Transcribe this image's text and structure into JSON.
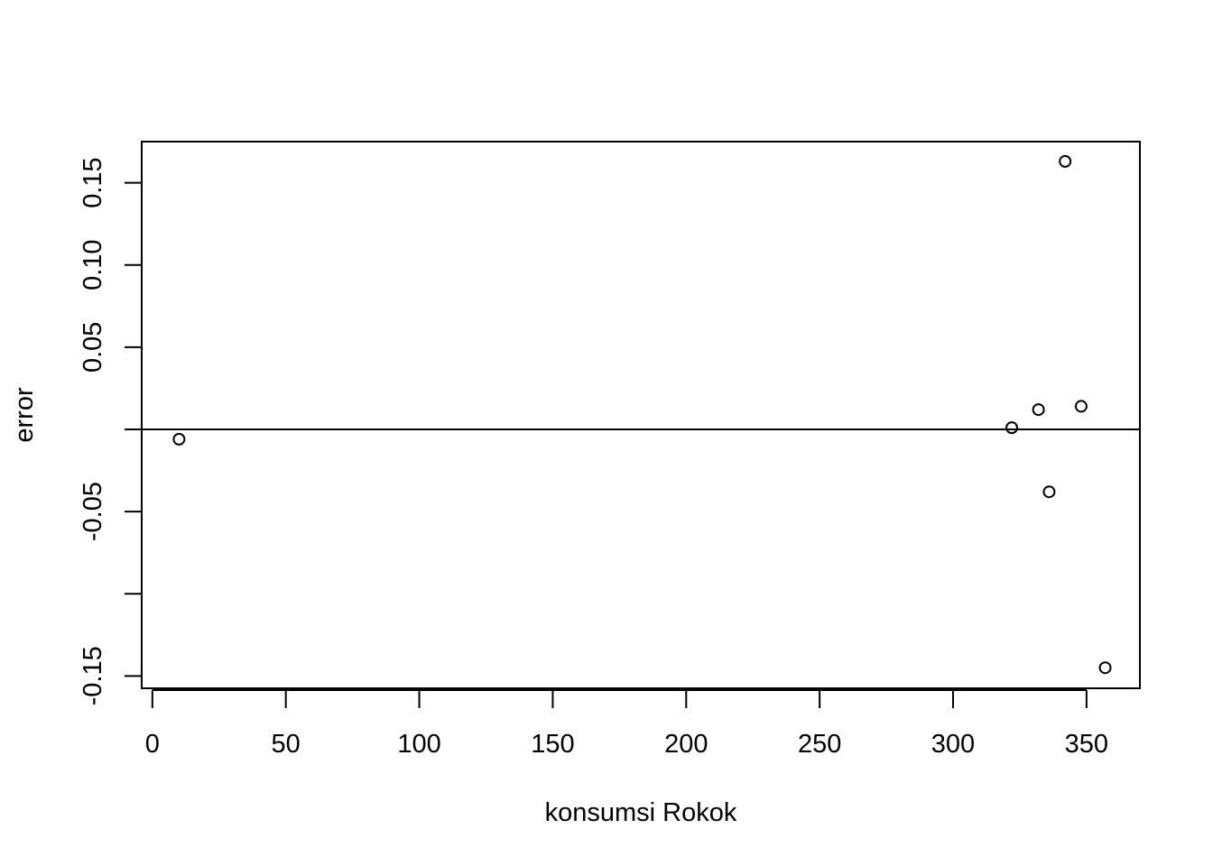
{
  "chart_data": {
    "type": "scatter",
    "title": "",
    "xlabel": "konsumsi Rokok",
    "ylabel": "error",
    "xlim": [
      -4,
      370
    ],
    "ylim": [
      -0.1575,
      0.175
    ],
    "x_ticks": [
      0,
      50,
      100,
      150,
      200,
      250,
      300,
      350
    ],
    "x_tick_labels": [
      "0",
      "50",
      "100",
      "150",
      "200",
      "250",
      "300",
      "350"
    ],
    "y_ticks": [
      -0.15,
      -0.1,
      -0.05,
      0.0,
      0.05,
      0.1,
      0.15
    ],
    "y_tick_labels": [
      "-0.15",
      "",
      "-0.05",
      "",
      "0.05",
      "0.10",
      "0.15"
    ],
    "reference_line_y": 0,
    "grid": false,
    "marker": "open-circle",
    "color": "#000000",
    "points": [
      {
        "x": 10,
        "y": -0.006
      },
      {
        "x": 322,
        "y": 0.001
      },
      {
        "x": 332,
        "y": 0.012
      },
      {
        "x": 336,
        "y": -0.038
      },
      {
        "x": 342,
        "y": 0.163
      },
      {
        "x": 348,
        "y": 0.014
      },
      {
        "x": 357,
        "y": -0.145
      }
    ]
  }
}
